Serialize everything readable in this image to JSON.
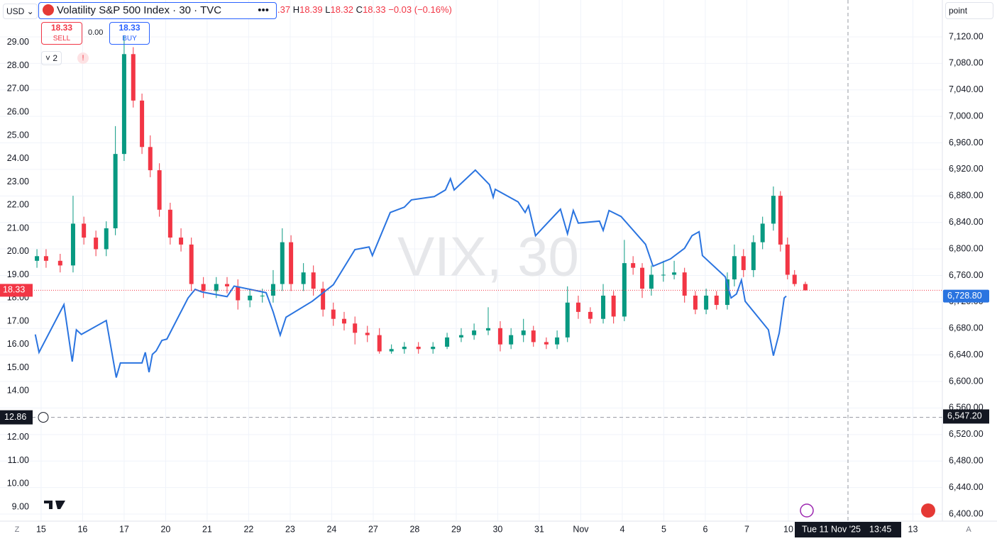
{
  "toolbar": {
    "currency": "USD",
    "symbol": "Volatility S&P 500 Index · 30 · TVC",
    "open_tail": ".37",
    "h_label": "H",
    "high": "18.39",
    "l_label": "L",
    "low": "18.32",
    "c_label": "C",
    "close": "18.33",
    "change": "−0.03 (−0.16%)"
  },
  "trade": {
    "sell_price": "18.33",
    "sell": "SELL",
    "spread": "0.00",
    "buy_price": "18.33",
    "buy": "BUY"
  },
  "indicators_count": "2",
  "scale_unit": "point",
  "watermark": "VIX, 30",
  "bottom_left": "Z",
  "bottom_right": "A",
  "crosshair": {
    "date": "Tue 11 Nov '25",
    "time": "13:45",
    "left_value": 12.86,
    "right_value": {
      "value": 6547.2,
      "label": "6,547.20"
    }
  },
  "chart_data": {
    "type": "candlestick",
    "xlim": [
      -0.99,
      21.71
    ],
    "xticks": [
      {
        "value": 0,
        "label": "15"
      },
      {
        "value": 1,
        "label": "16"
      },
      {
        "value": 2,
        "label": "17"
      },
      {
        "value": 3,
        "label": "20"
      },
      {
        "value": 4,
        "label": "21"
      },
      {
        "value": 5,
        "label": "22"
      },
      {
        "value": 6,
        "label": "23"
      },
      {
        "value": 7,
        "label": "24"
      },
      {
        "value": 8,
        "label": "27"
      },
      {
        "value": 9,
        "label": "28"
      },
      {
        "value": 10,
        "label": "29"
      },
      {
        "value": 11,
        "label": "30"
      },
      {
        "value": 12,
        "label": "31"
      },
      {
        "value": 13,
        "label": "Nov"
      },
      {
        "value": 14,
        "label": "4"
      },
      {
        "value": 15,
        "label": "5"
      },
      {
        "value": 16,
        "label": "6"
      },
      {
        "value": 17,
        "label": "7"
      },
      {
        "value": 18,
        "label": "10"
      },
      {
        "value": 21,
        "label": "13"
      }
    ],
    "ylim": [
      8.39,
      30.83
    ],
    "yticks": [
      {
        "value": 9,
        "label": "9.00"
      },
      {
        "value": 10,
        "label": "10.00"
      },
      {
        "value": 11,
        "label": "11.00"
      },
      {
        "value": 12,
        "label": "12.00"
      },
      {
        "value": 14,
        "label": "14.00"
      },
      {
        "value": 15,
        "label": "15.00"
      },
      {
        "value": 16,
        "label": "16.00"
      },
      {
        "value": 17,
        "label": "17.00"
      },
      {
        "value": 18,
        "label": "18.00"
      },
      {
        "value": 19,
        "label": "19.00"
      },
      {
        "value": 20,
        "label": "20.00"
      },
      {
        "value": 21,
        "label": "21.00"
      },
      {
        "value": 22,
        "label": "22.00"
      },
      {
        "value": 23,
        "label": "23.00"
      },
      {
        "value": 24,
        "label": "24.00"
      },
      {
        "value": 25,
        "label": "25.00"
      },
      {
        "value": 26,
        "label": "26.00"
      },
      {
        "value": 27,
        "label": "27.00"
      },
      {
        "value": 28,
        "label": "28.00"
      },
      {
        "value": 29,
        "label": "29.00"
      }
    ],
    "y2lim": [
      6389.3,
      7175.6
    ],
    "y2ticks": [
      {
        "value": 6400,
        "label": "6,400.00"
      },
      {
        "value": 6440,
        "label": "6,440.00"
      },
      {
        "value": 6480,
        "label": "6,480.00"
      },
      {
        "value": 6520,
        "label": "6,520.00"
      },
      {
        "value": 6560,
        "label": "6,560.00"
      },
      {
        "value": 6600,
        "label": "6,600.00"
      },
      {
        "value": 6640,
        "label": "6,640.00"
      },
      {
        "value": 6680,
        "label": "6,680.00"
      },
      {
        "value": 6720,
        "label": "6,720.00"
      },
      {
        "value": 6760,
        "label": "6,760.00"
      },
      {
        "value": 6800,
        "label": "6,800.00"
      },
      {
        "value": 6840,
        "label": "6,840.00"
      },
      {
        "value": 6880,
        "label": "6,880.00"
      },
      {
        "value": 6920,
        "label": "6,920.00"
      },
      {
        "value": 6960,
        "label": "6,960.00"
      },
      {
        "value": 7000,
        "label": "7,000.00"
      },
      {
        "value": 7040,
        "label": "7,040.00"
      },
      {
        "value": 7080,
        "label": "7,080.00"
      },
      {
        "value": 7120,
        "label": "7,120.00"
      }
    ],
    "grid": true,
    "last_price": 18.33,
    "last_price_y2": {
      "value": 6728.8,
      "label": "6,728.80"
    },
    "series": [
      {
        "type": "candlestick",
        "up_color": "#089981",
        "down_color": "#f23645",
        "x": [
          -0.1,
          0.12,
          0.46,
          0.77,
          1.03,
          1.32,
          1.57,
          1.79,
          2.0,
          2.22,
          2.43,
          2.63,
          2.85,
          3.11,
          3.37,
          3.62,
          3.91,
          4.22,
          4.48,
          4.74,
          5.03,
          5.33,
          5.59,
          5.81,
          6.02,
          6.32,
          6.56,
          6.79,
          7.04,
          7.3,
          7.56,
          7.86,
          8.15,
          8.44,
          8.75,
          9.09,
          9.44,
          9.78,
          10.12,
          10.43,
          10.77,
          11.06,
          11.32,
          11.62,
          11.86,
          12.17,
          12.43,
          12.68,
          12.94,
          13.23,
          13.54,
          13.79,
          14.05,
          14.26,
          14.48,
          14.7,
          14.99,
          15.25,
          15.5,
          15.76,
          16.02,
          16.27,
          16.53,
          16.7,
          16.92,
          17.16,
          17.38,
          17.64,
          17.81,
          17.98,
          18.15,
          18.41
        ],
        "open": [
          19.6,
          19.8,
          19.6,
          19.4,
          21.2,
          20.6,
          20.1,
          21.0,
          24.2,
          28.5,
          26.5,
          24.5,
          23.5,
          21.8,
          20.6,
          20.3,
          18.6,
          18.3,
          18.6,
          18.5,
          17.9,
          18.1,
          18.1,
          18.6,
          20.4,
          18.6,
          19.1,
          18.4,
          17.5,
          17.1,
          16.9,
          16.5,
          16.4,
          15.7,
          15.8,
          15.9,
          15.8,
          15.9,
          16.3,
          16.4,
          16.6,
          16.7,
          16.0,
          16.4,
          16.6,
          16.1,
          16.0,
          16.3,
          17.8,
          17.4,
          17.1,
          18.1,
          17.2,
          19.5,
          19.3,
          18.4,
          19.0,
          19.0,
          19.1,
          18.1,
          17.5,
          18.1,
          17.7,
          18.8,
          19.8,
          19.2,
          20.4,
          21.2,
          22.4,
          20.3,
          19.0,
          18.6
        ],
        "high": [
          20.1,
          20.1,
          19.9,
          22.4,
          21.5,
          20.9,
          21.3,
          25.4,
          29.3,
          28.8,
          26.8,
          25.0,
          23.8,
          22.1,
          21.0,
          20.6,
          18.9,
          18.9,
          18.9,
          18.8,
          18.4,
          18.4,
          19.2,
          21.0,
          20.7,
          19.5,
          19.4,
          18.7,
          17.8,
          17.4,
          17.2,
          16.8,
          16.7,
          16.0,
          16.1,
          16.1,
          16.1,
          16.5,
          16.7,
          16.9,
          17.6,
          17.0,
          16.7,
          17.1,
          16.8,
          16.3,
          16.6,
          18.5,
          18.1,
          17.6,
          18.6,
          18.3,
          20.5,
          19.8,
          19.5,
          19.4,
          19.6,
          19.6,
          19.3,
          18.3,
          18.4,
          18.3,
          19.1,
          20.3,
          20.1,
          20.7,
          21.5,
          22.8,
          22.6,
          20.6,
          19.2,
          18.7
        ],
        "low": [
          19.3,
          19.3,
          19.1,
          19.1,
          20.3,
          19.8,
          19.8,
          20.7,
          23.9,
          26.2,
          24.2,
          23.2,
          21.5,
          20.3,
          20.0,
          18.3,
          18.0,
          18.0,
          18.2,
          17.5,
          17.6,
          17.8,
          17.8,
          18.3,
          18.3,
          18.3,
          18.1,
          17.2,
          16.8,
          16.6,
          16.0,
          16.1,
          15.6,
          15.6,
          15.6,
          15.6,
          15.6,
          15.8,
          16.1,
          16.2,
          16.4,
          15.7,
          15.8,
          16.1,
          15.9,
          15.8,
          15.8,
          16.1,
          17.1,
          16.9,
          16.9,
          16.9,
          17.0,
          19.0,
          18.0,
          18.1,
          18.7,
          18.8,
          17.8,
          17.3,
          17.3,
          17.5,
          17.5,
          18.5,
          18.9,
          18.9,
          20.1,
          20.9,
          20.0,
          18.8,
          18.5,
          18.32
        ],
        "close": [
          19.8,
          19.6,
          19.4,
          21.2,
          20.6,
          20.1,
          21.0,
          24.2,
          28.5,
          26.5,
          24.5,
          23.5,
          21.8,
          20.6,
          20.3,
          18.6,
          18.3,
          18.6,
          18.5,
          17.9,
          18.1,
          18.1,
          18.6,
          20.4,
          18.6,
          19.1,
          18.4,
          17.5,
          17.1,
          16.9,
          16.5,
          16.4,
          15.7,
          15.8,
          15.9,
          15.8,
          15.9,
          16.3,
          16.4,
          16.6,
          16.7,
          16.0,
          16.4,
          16.6,
          16.1,
          16.0,
          16.3,
          17.8,
          17.4,
          17.1,
          18.1,
          17.2,
          19.5,
          19.3,
          18.4,
          19.0,
          19.0,
          19.1,
          18.1,
          17.5,
          18.1,
          17.7,
          18.8,
          19.8,
          19.2,
          20.4,
          21.2,
          22.4,
          20.3,
          19.0,
          18.6,
          18.33
        ]
      },
      {
        "type": "line",
        "axis": "y2",
        "color": "#2a74e0",
        "x": [
          -0.14,
          -0.05,
          0.55,
          0.75,
          0.85,
          0.97,
          1.57,
          1.69,
          1.81,
          1.91,
          2.43,
          2.51,
          2.6,
          2.68,
          2.77,
          2.91,
          3.03,
          3.54,
          3.71,
          3.88,
          4.48,
          4.65,
          5.42,
          5.59,
          5.76,
          5.9,
          6.53,
          7.04,
          7.56,
          7.9,
          7.98,
          8.41,
          8.75,
          8.92,
          9.47,
          9.74,
          9.86,
          9.95,
          10.46,
          10.8,
          10.89,
          10.94,
          11.49,
          11.66,
          11.74,
          11.91,
          12.51,
          12.68,
          12.82,
          12.94,
          13.45,
          13.54,
          13.68,
          13.97,
          14.56,
          14.74,
          15.16,
          15.5,
          15.68,
          15.85,
          15.93,
          16.48,
          16.62,
          16.75,
          16.87,
          16.96,
          17.52,
          17.64,
          17.78,
          17.9,
          17.95
        ],
        "values": [
          6671,
          6644,
          6716,
          6630,
          6678,
          6671,
          6692,
          6649,
          6606,
          6628,
          6628,
          6644,
          6614,
          6641,
          6646,
          6662,
          6664,
          6726,
          6739,
          6735,
          6728,
          6744,
          6734,
          6705,
          6670,
          6697,
          6721,
          6746,
          6799,
          6803,
          6790,
          6855,
          6863,
          6874,
          6879,
          6889,
          6906,
          6889,
          6919,
          6897,
          6878,
          6890,
          6871,
          6855,
          6865,
          6820,
          6860,
          6823,
          6858,
          6839,
          6842,
          6828,
          6858,
          6849,
          6807,
          6774,
          6785,
          6801,
          6820,
          6826,
          6790,
          6758,
          6726,
          6732,
          6753,
          6721,
          6678,
          6639,
          6673,
          6726,
          6728.8
        ]
      }
    ]
  }
}
